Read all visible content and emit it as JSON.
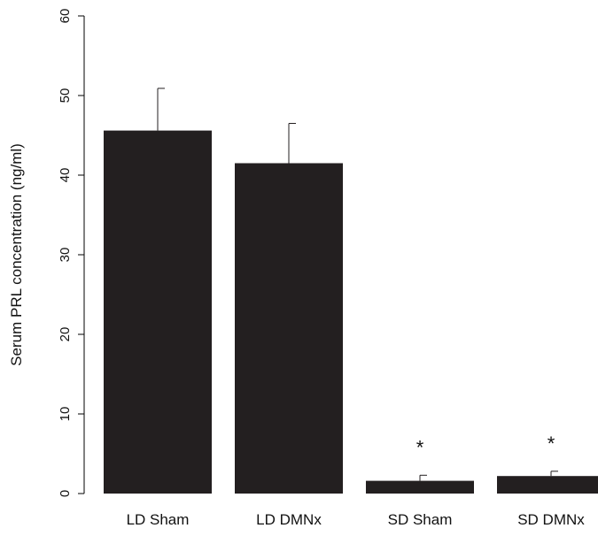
{
  "chart_data": {
    "type": "bar",
    "title": "",
    "xlabel": "",
    "ylabel": "Serum PRL concentration (ng/ml)",
    "ylim": [
      0,
      60
    ],
    "yticks": [
      0,
      10,
      20,
      30,
      40,
      50,
      60
    ],
    "categories": [
      "LD Sham",
      "LD DMNx",
      "SD Sham",
      "SD DMNx"
    ],
    "values": [
      45.6,
      41.5,
      1.6,
      2.2
    ],
    "error_upper": [
      5.3,
      5.0,
      0.7,
      0.6
    ],
    "annotations": [
      "",
      "",
      "*",
      "*"
    ],
    "bar_color": "#231f20",
    "grid": false,
    "legend": null
  }
}
